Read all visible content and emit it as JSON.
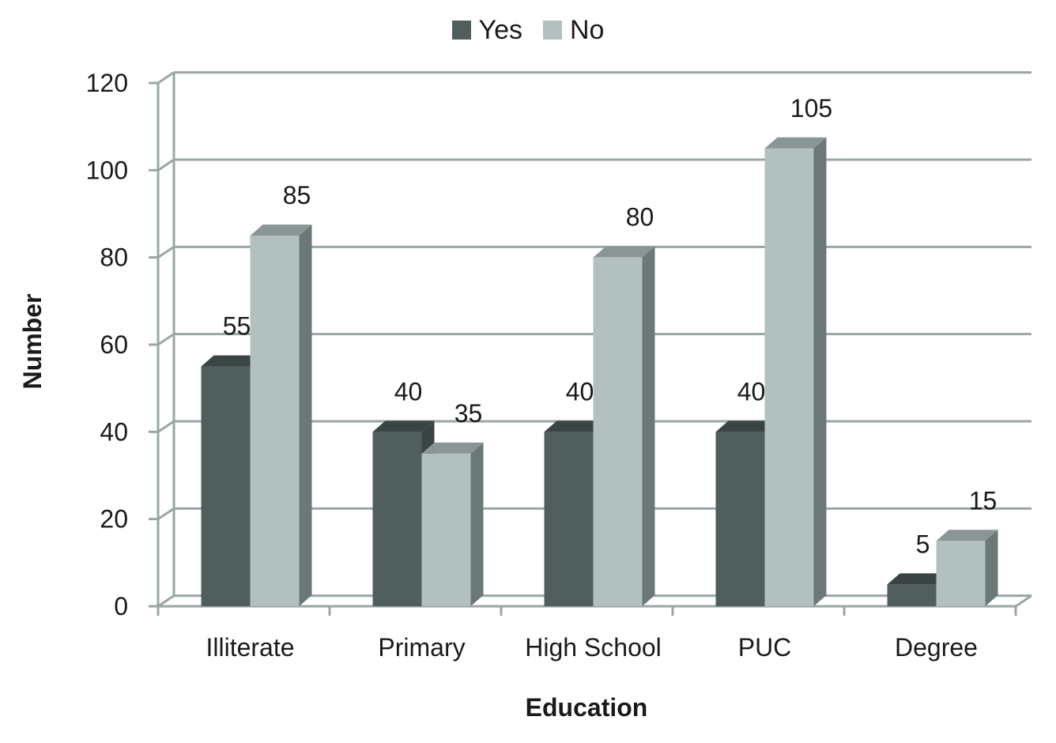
{
  "chart_data": {
    "type": "bar",
    "title": "",
    "xlabel": "Education",
    "ylabel": "Number",
    "ylim": [
      0,
      120
    ],
    "yticks": [
      0,
      20,
      40,
      60,
      80,
      100,
      120
    ],
    "grid": true,
    "legend_position": "top-center",
    "categories": [
      "Illiterate",
      "Primary",
      "High School",
      "PUC",
      "Degree"
    ],
    "series": [
      {
        "name": "Yes",
        "values": [
          55,
          40,
          40,
          40,
          5
        ],
        "color": "#515e5e"
      },
      {
        "name": "No",
        "values": [
          85,
          35,
          80,
          105,
          15
        ],
        "color": "#b3c0c0"
      }
    ]
  }
}
